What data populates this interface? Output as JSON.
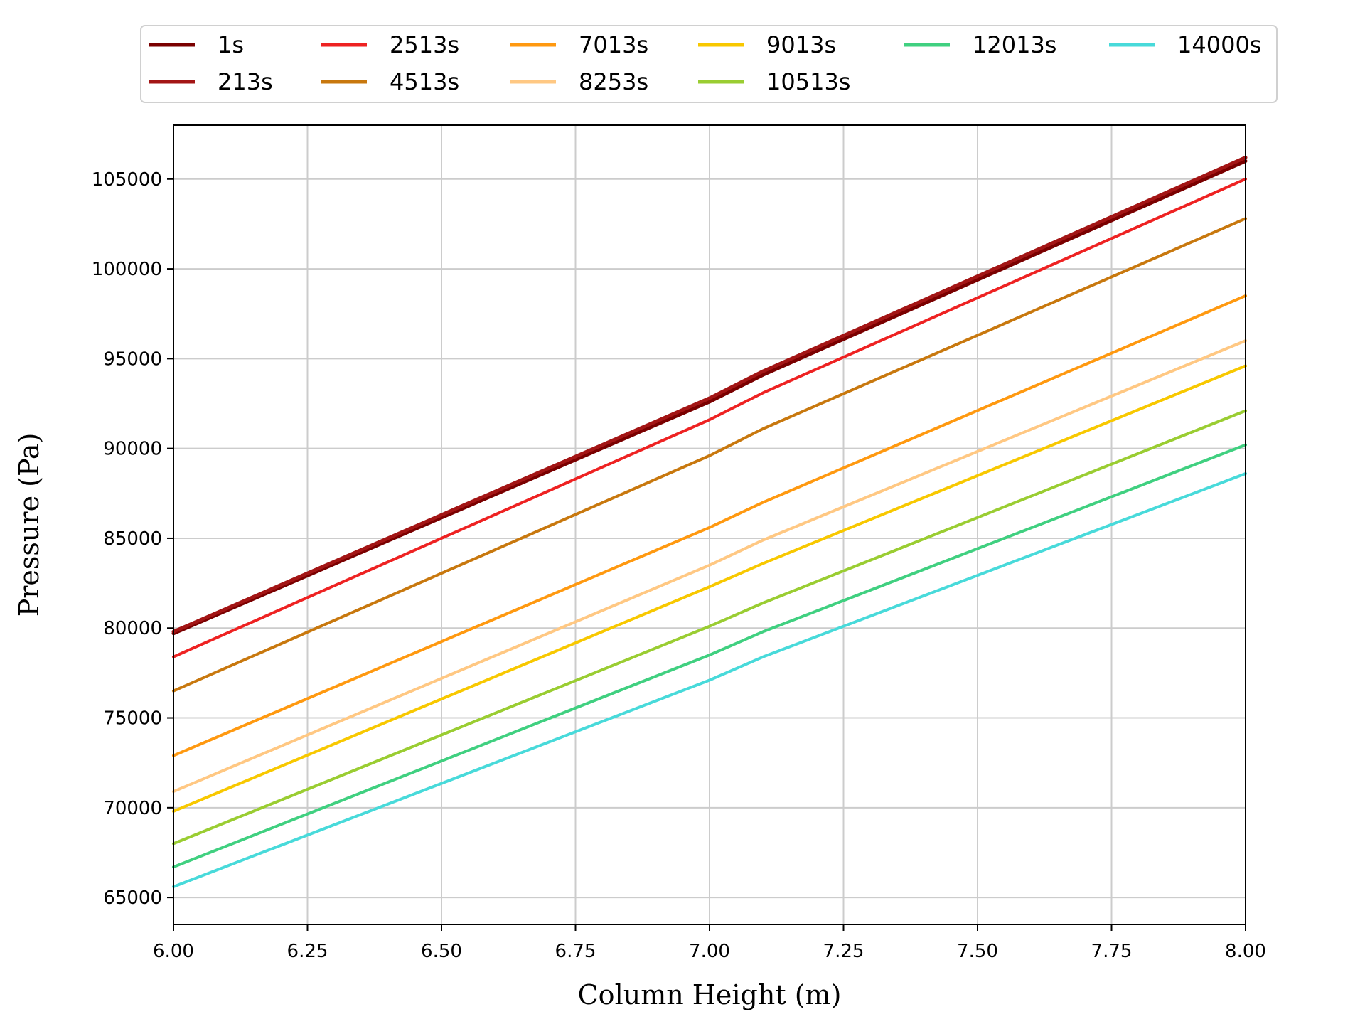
{
  "chart_data": {
    "type": "line",
    "xlabel": "Column Height (m)",
    "ylabel": "Pressure (Pa)",
    "xlim": [
      6.0,
      8.0
    ],
    "ylim": [
      63500,
      108000
    ],
    "xticks": [
      6.0,
      6.25,
      6.5,
      6.75,
      7.0,
      7.25,
      7.5,
      7.75,
      8.0
    ],
    "xtick_labels": [
      "6.00",
      "6.25",
      "6.50",
      "6.75",
      "7.00",
      "7.25",
      "7.50",
      "7.75",
      "8.00"
    ],
    "yticks": [
      65000,
      70000,
      75000,
      80000,
      85000,
      90000,
      95000,
      100000,
      105000
    ],
    "ytick_labels": [
      "65000",
      "70000",
      "75000",
      "80000",
      "85000",
      "90000",
      "95000",
      "100000",
      "105000"
    ],
    "grid": true,
    "legend_position": "top, above plot, 6 columns",
    "series": [
      {
        "name": "1s",
        "color": "#7a0000",
        "x": [
          6.0,
          7.0,
          7.1,
          8.0
        ],
        "y": [
          79700,
          92600,
          94100,
          106000
        ]
      },
      {
        "name": "213s",
        "color": "#a31515",
        "x": [
          6.0,
          7.0,
          7.1,
          8.0
        ],
        "y": [
          79800,
          92800,
          94300,
          106200
        ]
      },
      {
        "name": "2513s",
        "color": "#ee2222",
        "x": [
          6.0,
          7.0,
          7.1,
          8.0
        ],
        "y": [
          78400,
          91600,
          93100,
          105000
        ]
      },
      {
        "name": "4513s",
        "color": "#c8780e",
        "x": [
          6.0,
          7.0,
          7.1,
          8.0
        ],
        "y": [
          76500,
          89600,
          91100,
          102800
        ]
      },
      {
        "name": "7013s",
        "color": "#ff9910",
        "x": [
          6.0,
          7.0,
          7.1,
          8.0
        ],
        "y": [
          72900,
          85600,
          87000,
          98500
        ]
      },
      {
        "name": "8253s",
        "color": "#ffc883",
        "x": [
          6.0,
          7.0,
          7.1,
          8.0
        ],
        "y": [
          70900,
          83500,
          84900,
          96000
        ]
      },
      {
        "name": "9013s",
        "color": "#f8c800",
        "x": [
          6.0,
          7.0,
          7.1,
          8.0
        ],
        "y": [
          69800,
          82300,
          83600,
          94600
        ]
      },
      {
        "name": "10513s",
        "color": "#9acd32",
        "x": [
          6.0,
          7.0,
          7.1,
          8.0
        ],
        "y": [
          68000,
          80100,
          81400,
          92100
        ]
      },
      {
        "name": "12013s",
        "color": "#40d080",
        "x": [
          6.0,
          7.0,
          7.1,
          8.0
        ],
        "y": [
          66700,
          78500,
          79800,
          90200
        ]
      },
      {
        "name": "14000s",
        "color": "#48dada",
        "x": [
          6.0,
          7.0,
          7.1,
          8.0
        ],
        "y": [
          65600,
          77100,
          78400,
          88600
        ]
      }
    ]
  }
}
